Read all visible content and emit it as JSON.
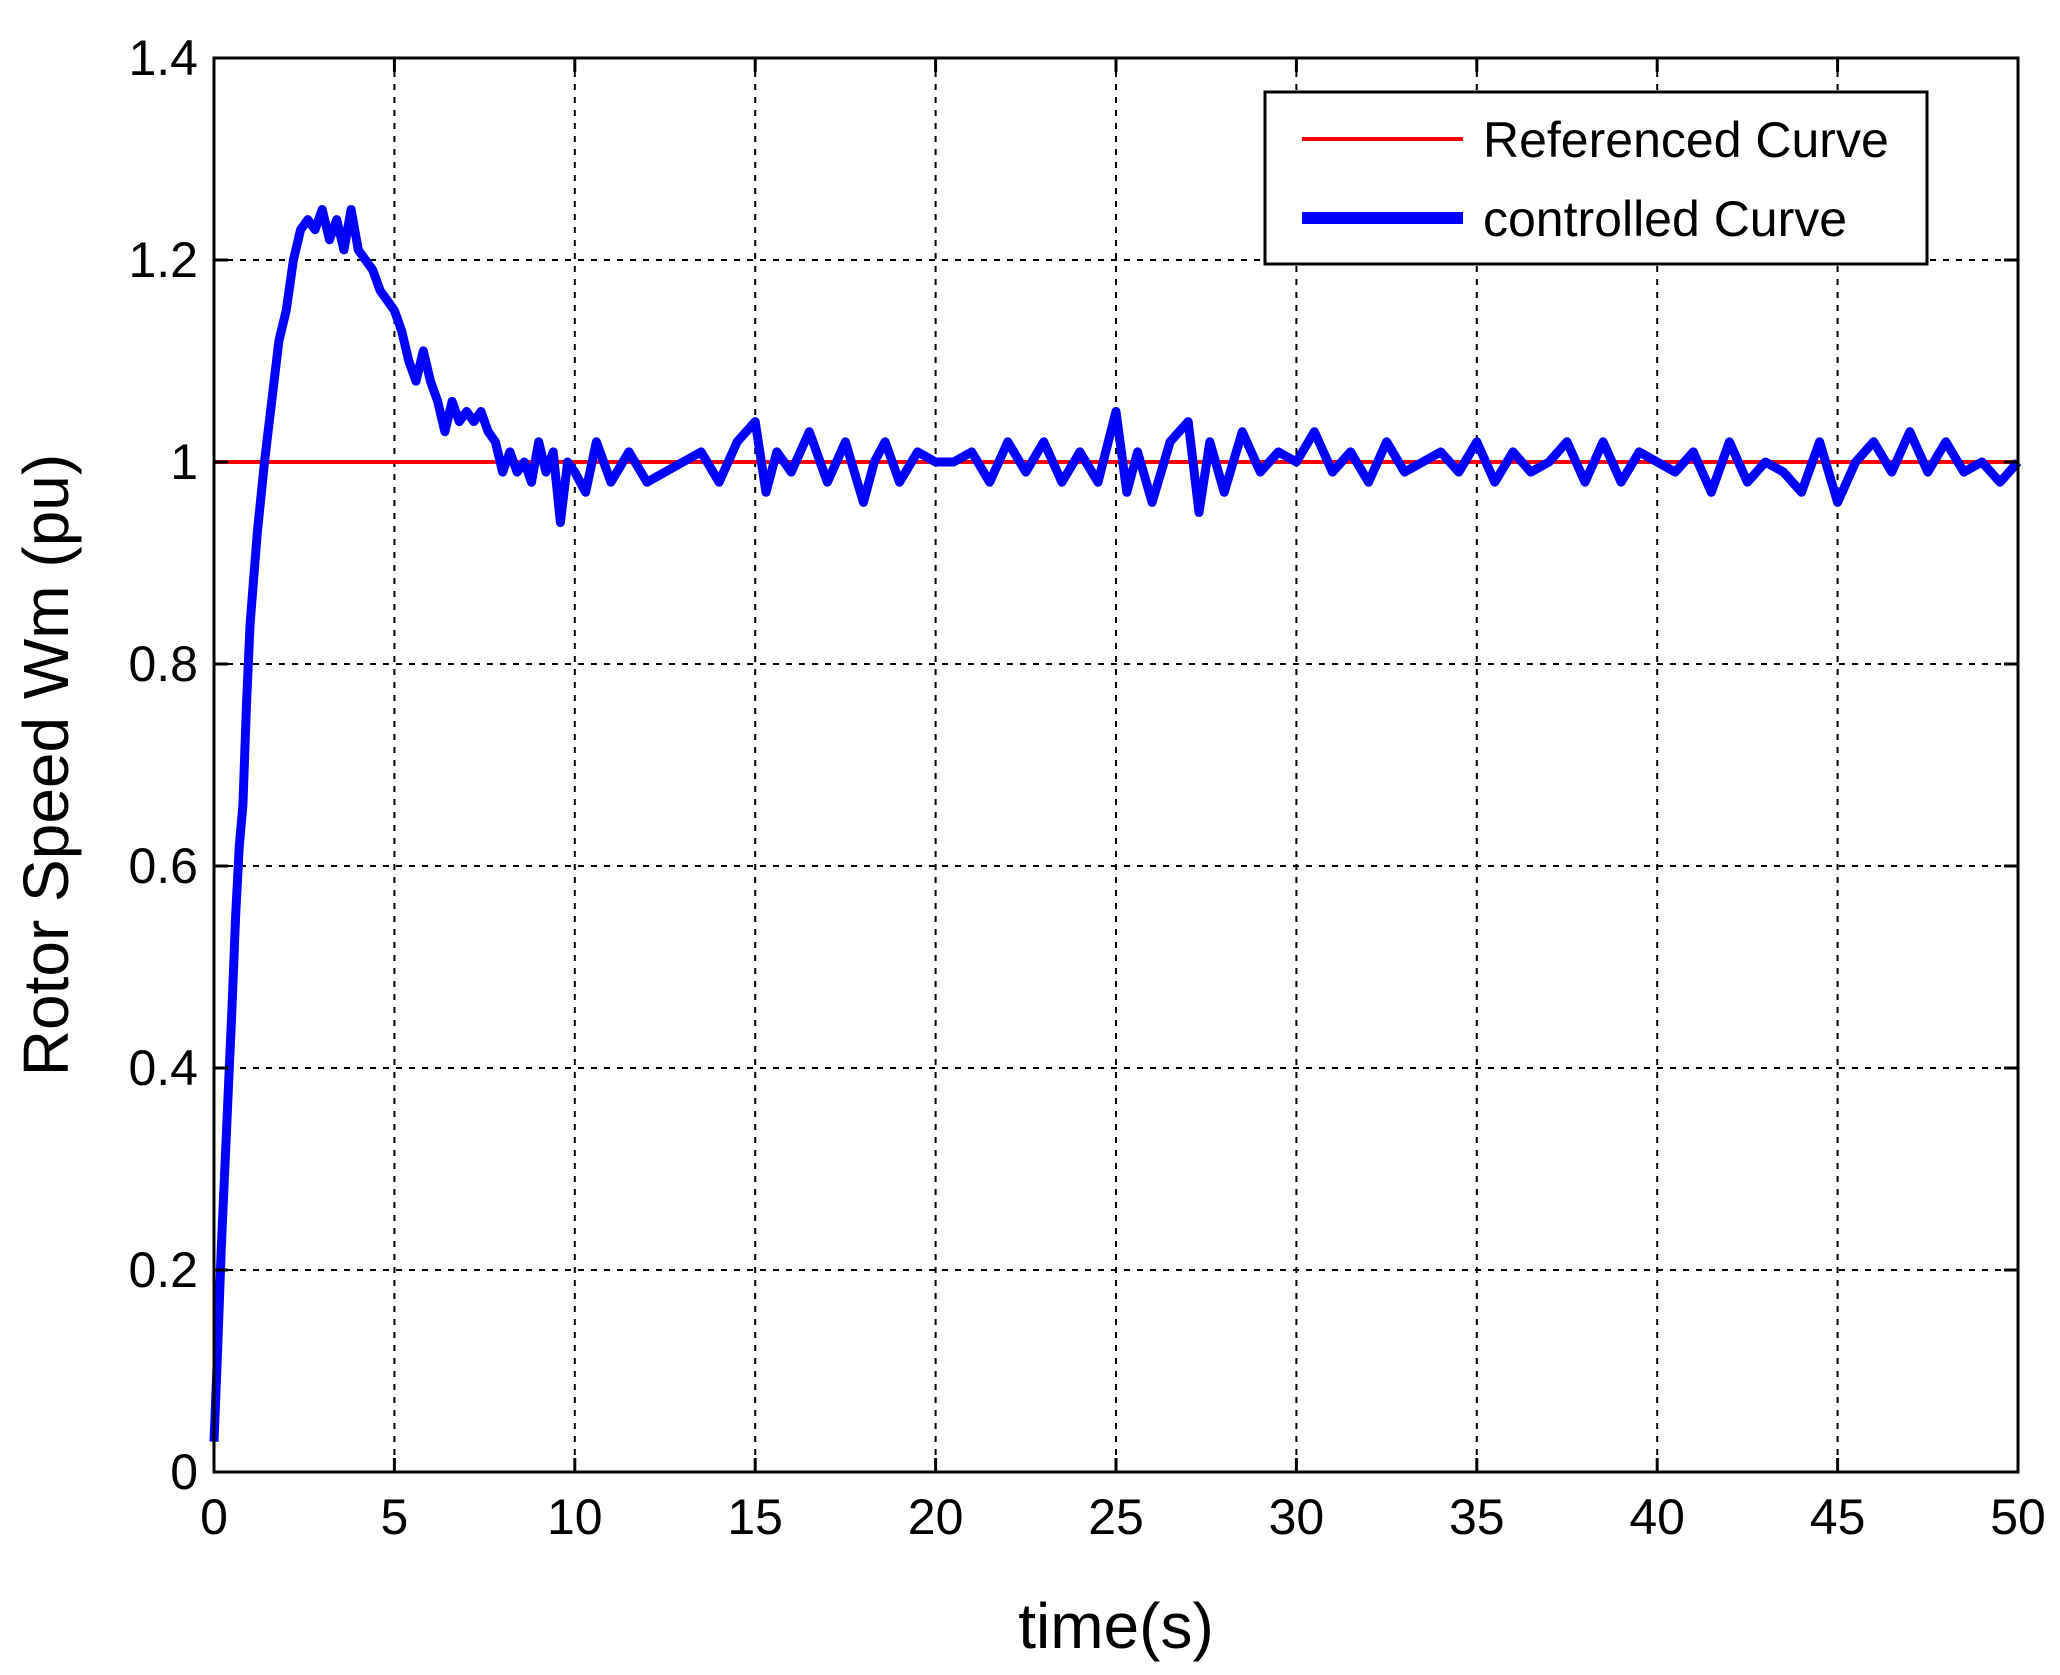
{
  "chart_data": {
    "type": "line",
    "title": "",
    "xlabel": "time(s)",
    "ylabel": "Rotor Speed Wm (pu)",
    "xlim": [
      0,
      50
    ],
    "ylim": [
      0,
      1.4
    ],
    "x_ticks": [
      0,
      5,
      10,
      15,
      20,
      25,
      30,
      35,
      40,
      45,
      50
    ],
    "y_ticks": [
      0,
      0.2,
      0.4,
      0.6,
      0.8,
      1,
      1.2,
      1.4
    ],
    "x_tick_labels": [
      "0",
      "5",
      "10",
      "15",
      "20",
      "25",
      "30",
      "35",
      "40",
      "45",
      "50"
    ],
    "y_tick_labels": [
      "0",
      "0.2",
      "0.4",
      "0.6",
      "0.8",
      "1",
      "1.2",
      "1.4"
    ],
    "grid": true,
    "legend_position": "top-right",
    "series": [
      {
        "name": "Referenced Curve",
        "color": "#ff0000",
        "x": [
          0,
          50
        ],
        "y": [
          1,
          1
        ]
      },
      {
        "name": "controlled Curve",
        "color": "#0000ff",
        "x": [
          0,
          0.1,
          0.2,
          0.3,
          0.4,
          0.5,
          0.6,
          0.7,
          0.8,
          0.9,
          1.0,
          1.2,
          1.4,
          1.6,
          1.8,
          2.0,
          2.2,
          2.4,
          2.6,
          2.8,
          3.0,
          3.2,
          3.4,
          3.6,
          3.8,
          4.0,
          4.2,
          4.4,
          4.6,
          4.8,
          5.0,
          5.2,
          5.4,
          5.6,
          5.8,
          6.0,
          6.2,
          6.4,
          6.6,
          6.8,
          7.0,
          7.2,
          7.4,
          7.6,
          7.8,
          8.0,
          8.2,
          8.4,
          8.6,
          8.8,
          9.0,
          9.2,
          9.4,
          9.6,
          9.8,
          10.0,
          10.3,
          10.6,
          11.0,
          11.5,
          12.0,
          12.5,
          13.0,
          13.5,
          14.0,
          14.5,
          15.0,
          15.3,
          15.6,
          16.0,
          16.5,
          17.0,
          17.5,
          18.0,
          18.3,
          18.6,
          19.0,
          19.5,
          20.0,
          20.5,
          21.0,
          21.5,
          22.0,
          22.5,
          23.0,
          23.5,
          24.0,
          24.5,
          25.0,
          25.3,
          25.6,
          26.0,
          26.5,
          27.0,
          27.3,
          27.6,
          28.0,
          28.5,
          29.0,
          29.5,
          30.0,
          30.5,
          31.0,
          31.5,
          32.0,
          32.5,
          33.0,
          33.5,
          34.0,
          34.5,
          35.0,
          35.5,
          36.0,
          36.5,
          37.0,
          37.5,
          38.0,
          38.5,
          39.0,
          39.5,
          40.0,
          40.5,
          41.0,
          41.5,
          42.0,
          42.5,
          43.0,
          43.5,
          44.0,
          44.5,
          45.0,
          45.5,
          46.0,
          46.5,
          47.0,
          47.5,
          48.0,
          48.5,
          49.0,
          49.5,
          50.0
        ],
        "y": [
          0.03,
          0.12,
          0.22,
          0.3,
          0.38,
          0.46,
          0.55,
          0.62,
          0.66,
          0.76,
          0.84,
          0.93,
          1.0,
          1.06,
          1.12,
          1.15,
          1.2,
          1.23,
          1.24,
          1.23,
          1.25,
          1.22,
          1.24,
          1.21,
          1.25,
          1.21,
          1.2,
          1.19,
          1.17,
          1.16,
          1.15,
          1.13,
          1.1,
          1.08,
          1.11,
          1.08,
          1.06,
          1.03,
          1.06,
          1.04,
          1.05,
          1.04,
          1.05,
          1.03,
          1.02,
          0.99,
          1.01,
          0.99,
          1.0,
          0.98,
          1.02,
          0.99,
          1.01,
          0.94,
          1.0,
          0.99,
          0.97,
          1.02,
          0.98,
          1.01,
          0.98,
          0.99,
          1.0,
          1.01,
          0.98,
          1.02,
          1.04,
          0.97,
          1.01,
          0.99,
          1.03,
          0.98,
          1.02,
          0.96,
          1.0,
          1.02,
          0.98,
          1.01,
          1.0,
          1.0,
          1.01,
          0.98,
          1.02,
          0.99,
          1.02,
          0.98,
          1.01,
          0.98,
          1.05,
          0.97,
          1.01,
          0.96,
          1.02,
          1.04,
          0.95,
          1.02,
          0.97,
          1.03,
          0.99,
          1.01,
          1.0,
          1.03,
          0.99,
          1.01,
          0.98,
          1.02,
          0.99,
          1.0,
          1.01,
          0.99,
          1.02,
          0.98,
          1.01,
          0.99,
          1.0,
          1.02,
          0.98,
          1.02,
          0.98,
          1.01,
          1.0,
          0.99,
          1.01,
          0.97,
          1.02,
          0.98,
          1.0,
          0.99,
          0.97,
          1.02,
          0.96,
          1.0,
          1.02,
          0.99,
          1.03,
          0.99,
          1.02,
          0.99,
          1.0,
          0.98,
          1.0
        ]
      }
    ]
  }
}
